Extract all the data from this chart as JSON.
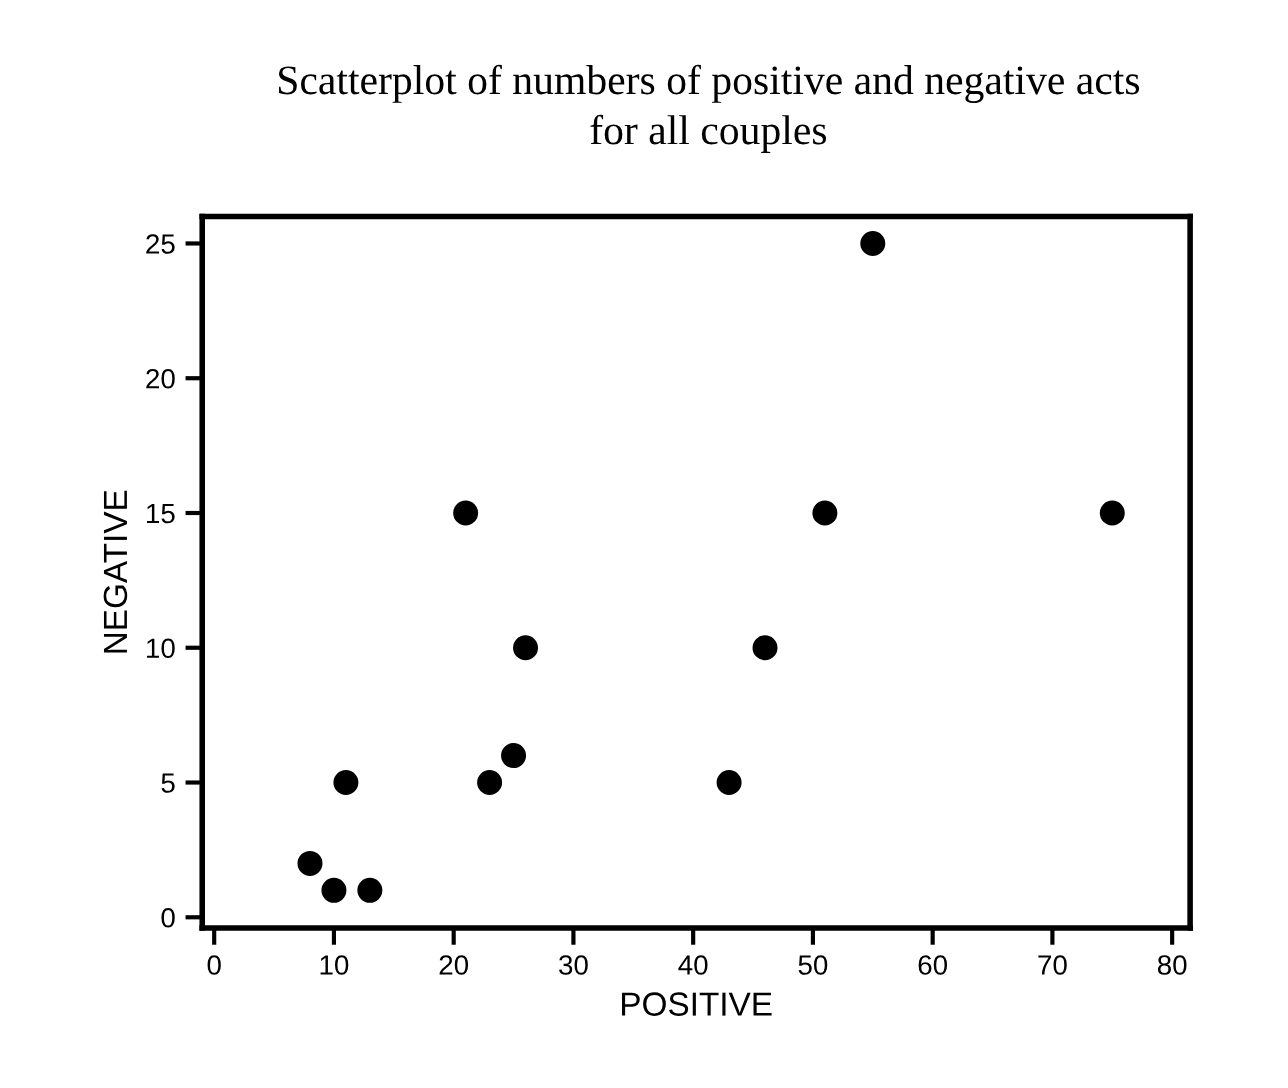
{
  "chart_data": {
    "type": "scatter",
    "title": "Scatterplot of numbers of positive and negative acts\nfor all couples",
    "xlabel": "POSITIVE",
    "ylabel": "NEGATIVE",
    "x": [
      8,
      10,
      13,
      11,
      21,
      23,
      25,
      26,
      43,
      46,
      51,
      55,
      75
    ],
    "values": [
      2,
      1,
      1,
      5,
      15,
      5,
      6,
      10,
      5,
      10,
      15,
      25,
      15
    ],
    "color": "#000000",
    "marker": "circle",
    "xlim": [
      -1,
      81.5
    ],
    "ylim": [
      -0.4,
      26
    ],
    "xticks": [
      0,
      10,
      20,
      30,
      40,
      50,
      60,
      70,
      80
    ],
    "yticks": [
      0,
      5,
      10,
      15,
      20,
      25
    ],
    "grid": false,
    "legend": false
  }
}
